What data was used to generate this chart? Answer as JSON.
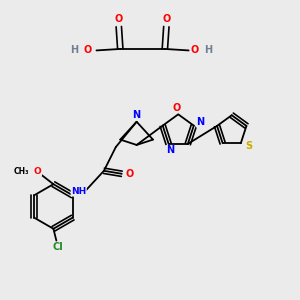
{
  "bg_color": "#ebebeb",
  "atom_colors": {
    "C": "#000000",
    "H": "#708090",
    "N": "#0000FF",
    "O": "#FF0000",
    "S": "#ccaa00",
    "Cl": "#228B22"
  },
  "bond_color": "#000000",
  "figsize": [
    3.0,
    3.0
  ],
  "dpi": 100
}
